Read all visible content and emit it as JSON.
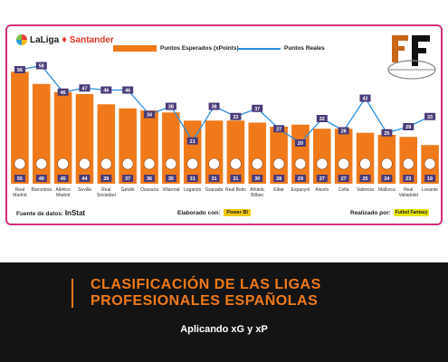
{
  "header": {
    "brand_name": "LaLiga",
    "brand_sponsor": "Santander",
    "legend_bar_label": "Puntos Esperados (xPoints)",
    "legend_line_label": "Puntos Reales"
  },
  "chart_data": {
    "type": "bar",
    "categories": [
      "Real Madrid",
      "Barcelona",
      "Atlético Madrid",
      "Sevilla",
      "Real Sociedad",
      "Getafe",
      "Osasuna",
      "Villarreal",
      "Leganés",
      "Granada",
      "Real Betis",
      "Athletic Bilbao",
      "Eibar",
      "Espanyol",
      "Alavés",
      "Celta",
      "Valencia",
      "Mallorca",
      "Real Valladolid",
      "Levante"
    ],
    "category_lines": [
      [
        "Real",
        "Madrid"
      ],
      [
        "Barcelona"
      ],
      [
        "Atlético",
        "Madrid"
      ],
      [
        "Sevilla"
      ],
      [
        "Real",
        "Sociedad"
      ],
      [
        "Getafe"
      ],
      [
        "Osasuna"
      ],
      [
        "Villarreal"
      ],
      [
        "Leganés"
      ],
      [
        "Granada"
      ],
      [
        "Real Betis"
      ],
      [
        "Athletic",
        "Bilbao"
      ],
      [
        "Eibar"
      ],
      [
        "Espanyol"
      ],
      [
        "Alavés"
      ],
      [
        "Celta"
      ],
      [
        "Valencia"
      ],
      [
        "Mallorca"
      ],
      [
        "Real",
        "Valladolid"
      ],
      [
        "Levante"
      ]
    ],
    "series": [
      {
        "name": "Puntos Esperados (xPoints)",
        "kind": "bar",
        "color": "#f07a1a",
        "values": [
          55,
          49,
          45,
          44,
          39,
          37,
          36,
          35,
          31,
          31,
          31,
          30,
          28,
          29,
          27,
          27,
          25,
          24,
          23,
          19
        ]
      },
      {
        "name": "Puntos Reales",
        "kind": "line",
        "color": "#2b8fdc",
        "values": [
          56,
          58,
          45,
          47,
          46,
          46,
          34,
          38,
          21,
          38,
          33,
          37,
          27,
          20,
          32,
          26,
          42,
          25,
          28,
          33
        ]
      }
    ],
    "ylim": [
      0,
      60
    ]
  },
  "footer": {
    "source_label": "Fuente de datos:",
    "source_name": "InStat",
    "made_with_label": "Elaborado con:",
    "made_with_tool": "Power BI",
    "made_by_label": "Realizado por:",
    "made_by_badge": "Futbol Fantasy"
  },
  "banner": {
    "title": "CLASIFICACIÓN DE LAS LIGAS PROFESIONALES ESPAÑOLAS",
    "subtitle": "Aplicando xG y xP"
  },
  "colors": {
    "accent": "#f07a1a",
    "line": "#2b8fdc",
    "label_bg": "#4b3b78",
    "frame": "#d62f7a",
    "banner_bg": "#141414"
  }
}
